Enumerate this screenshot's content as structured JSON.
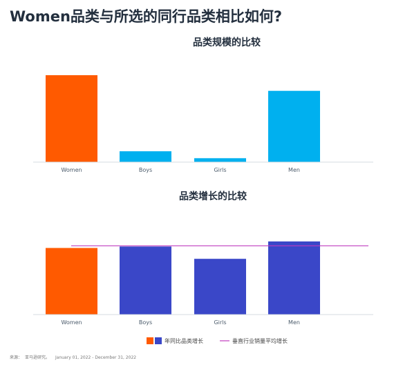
{
  "page_title": "Women品类与所选的同行品类相比如何?",
  "colors": {
    "women": "#ff5a00",
    "peer_size": "#00b0ef",
    "peer_growth": "#3a47c8",
    "avg_line": "#c03bbf",
    "axis": "#d6dbe0"
  },
  "chart_data": [
    {
      "type": "bar",
      "title": "品类规模的比较",
      "categories": [
        "Women",
        "Boys",
        "Girls",
        "Men"
      ],
      "values": [
        100,
        12.5,
        4.5,
        82
      ],
      "ylim": [
        0,
        100
      ],
      "xlabel": "",
      "ylabel": "",
      "grid": false
    },
    {
      "type": "bar",
      "title": "品类增长的比较",
      "categories": [
        "Women",
        "Boys",
        "Girls",
        "Men"
      ],
      "values": [
        92,
        94,
        77,
        101
      ],
      "reference_line": 95,
      "ylim": [
        0,
        101
      ],
      "xlabel": "",
      "ylabel": "",
      "grid": false
    }
  ],
  "legend": {
    "bar_label": "年同比品类增长",
    "line_label": "垂直行业销量平均增长",
    "placement": "bottom"
  },
  "source": {
    "label": "来源：",
    "name": "亚马逊研究。",
    "period": "January 01, 2022 - December 31, 2022"
  }
}
